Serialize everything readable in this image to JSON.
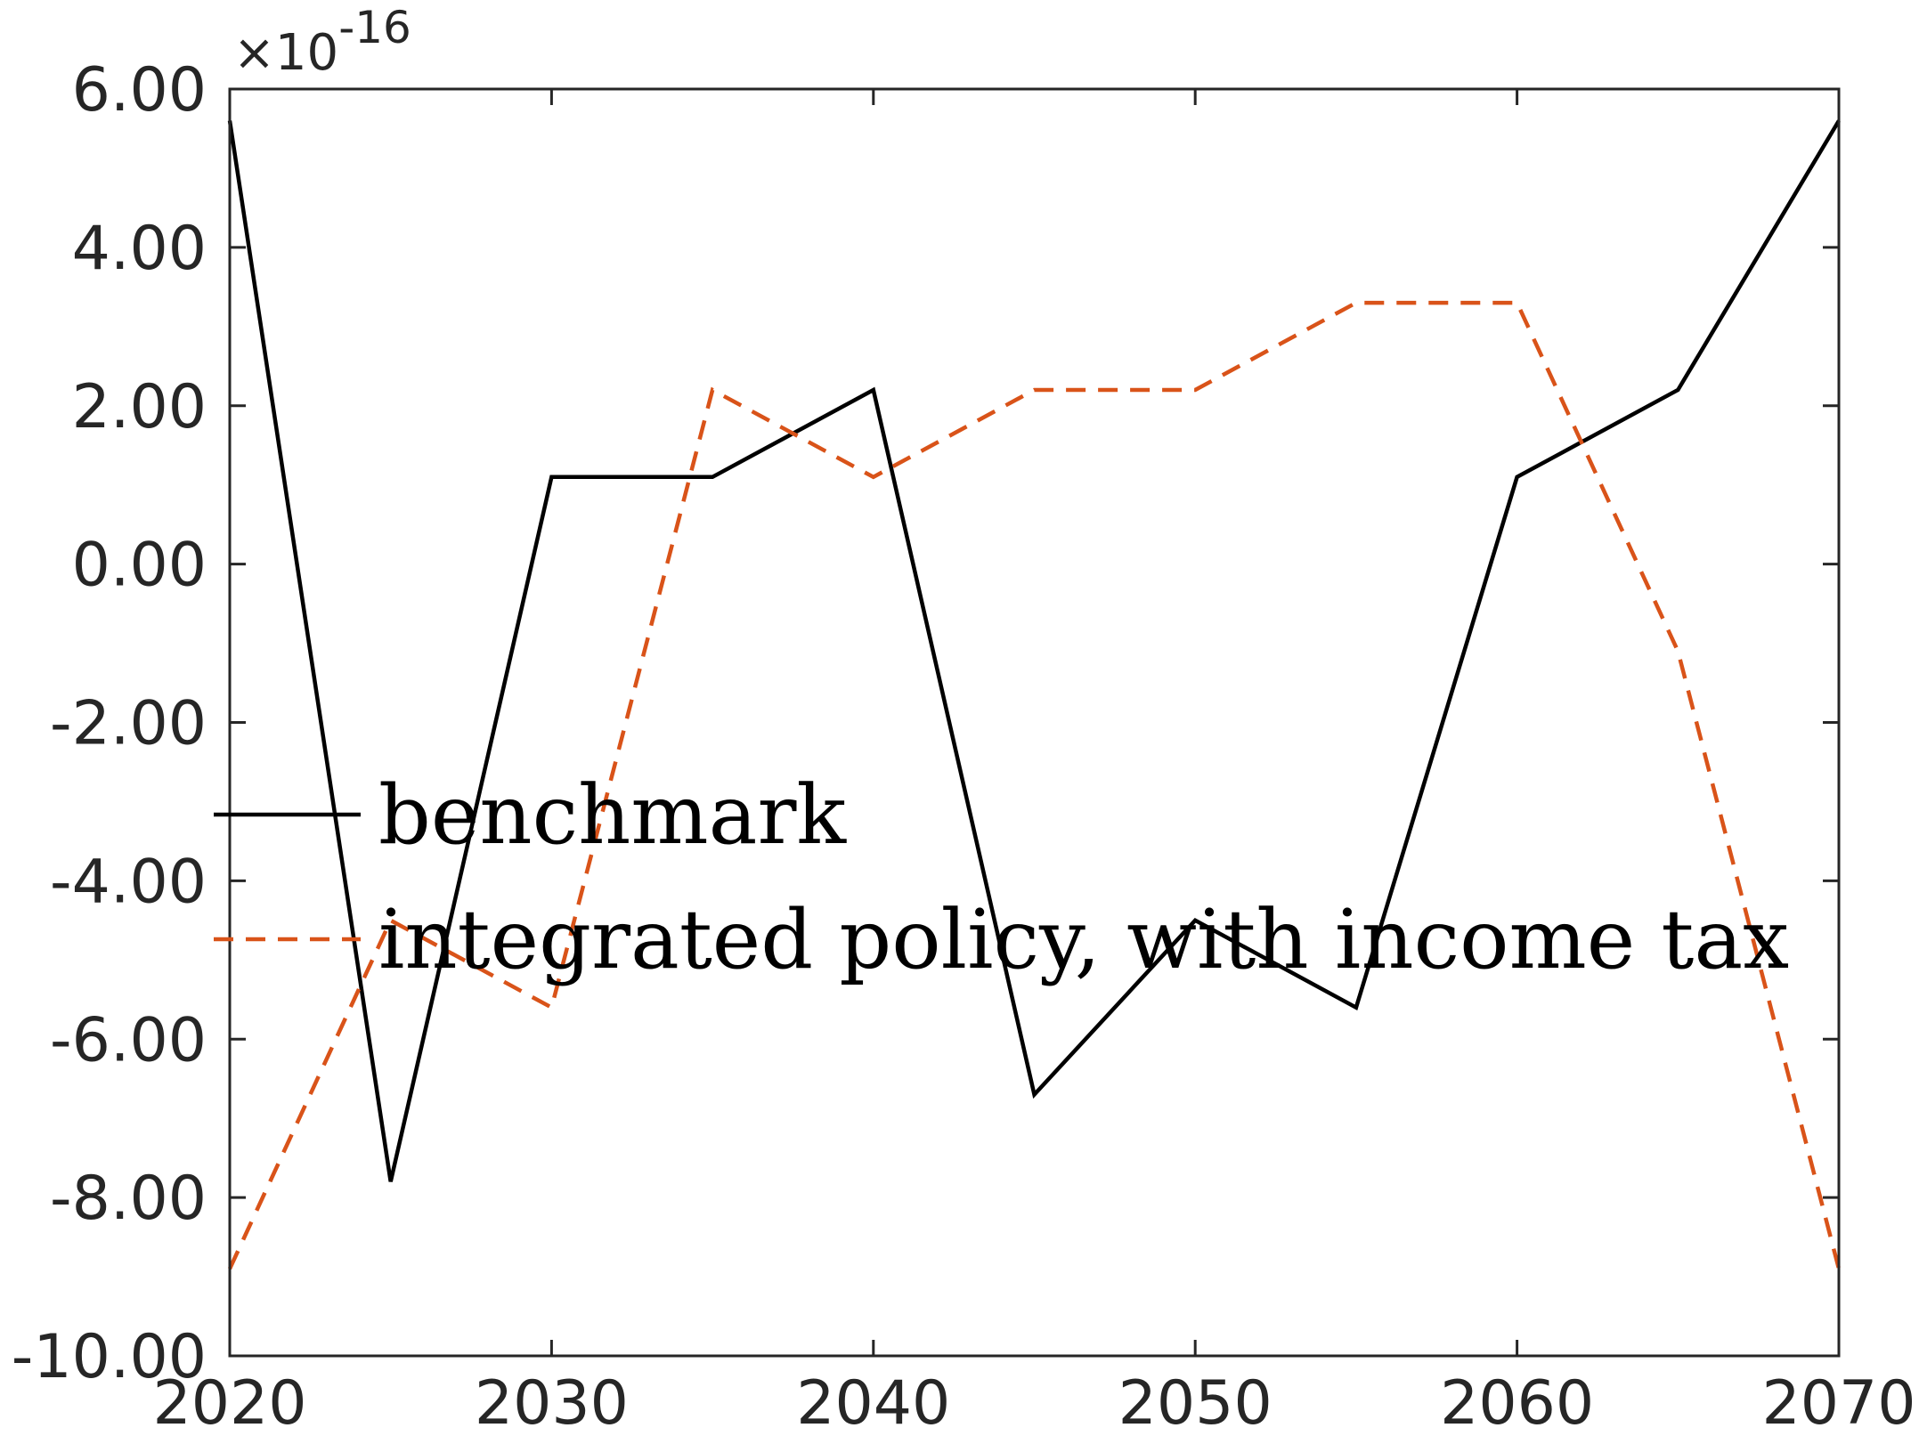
{
  "chart_data": {
    "type": "line",
    "x": [
      2020,
      2025,
      2030,
      2035,
      2040,
      2045,
      2050,
      2055,
      2060,
      2065,
      2070
    ],
    "series": [
      {
        "name": "benchmark",
        "values": [
          5.6,
          -7.8,
          1.1,
          1.1,
          2.2,
          -6.7,
          -4.5,
          -5.6,
          1.1,
          2.2,
          5.6
        ],
        "color": "#000000",
        "style": "solid"
      },
      {
        "name": "integrated policy, with income tax",
        "values": [
          -8.9,
          -4.5,
          -5.6,
          2.2,
          1.1,
          2.2,
          2.2,
          3.3,
          3.3,
          -1.1,
          -8.9
        ],
        "color": "#D95319",
        "style": "dashed"
      }
    ],
    "xlim": [
      2020,
      2070
    ],
    "ylim": [
      -10,
      6
    ],
    "x_ticks": [
      "2020",
      "2030",
      "2040",
      "2050",
      "2060",
      "2070"
    ],
    "y_ticks": [
      "6.00",
      "4.00",
      "2.00",
      "0.00",
      "-2.00",
      "-4.00",
      "-6.00",
      "-8.00",
      "-10.00"
    ],
    "y_exponent": {
      "prefix": "×10",
      "power": "-16"
    },
    "grid": false,
    "legend_position": "center-left"
  }
}
